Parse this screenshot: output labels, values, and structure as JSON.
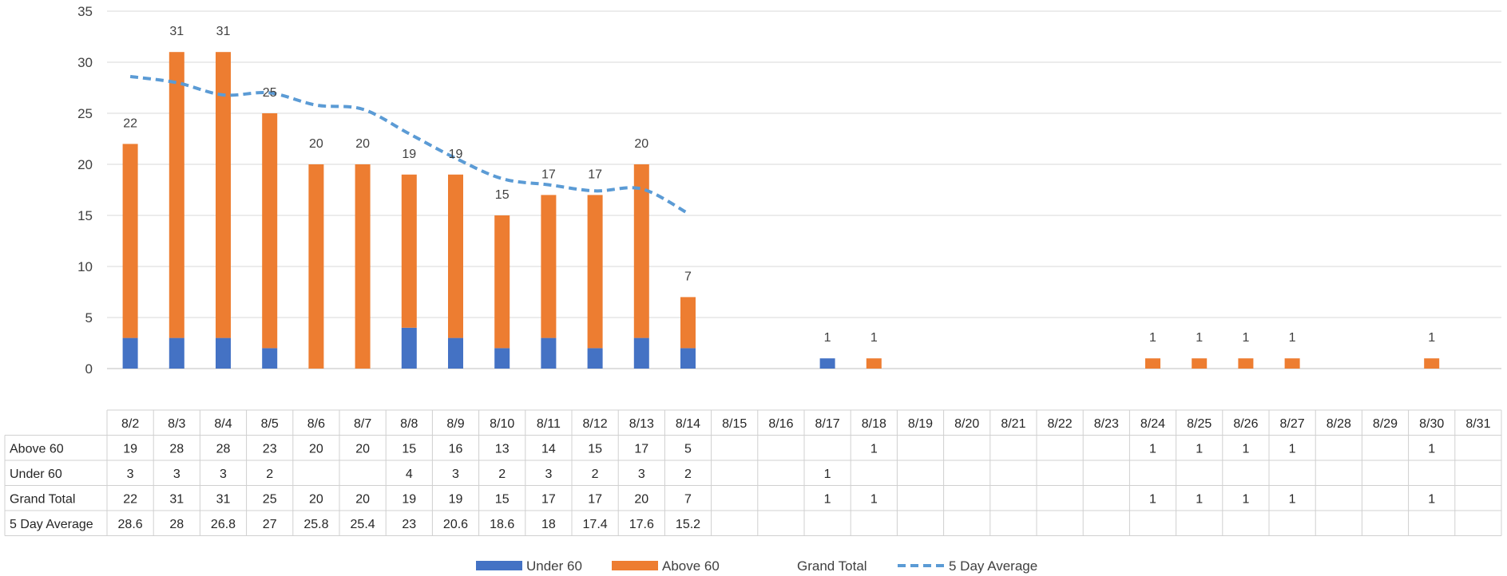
{
  "chart_data": {
    "type": "bar",
    "stacked": true,
    "title": "",
    "xlabel": "",
    "ylabel": "",
    "ylim": [
      0,
      35
    ],
    "yticks": [
      0,
      5,
      10,
      15,
      20,
      25,
      30,
      35
    ],
    "grid": true,
    "legend_position": "bottom",
    "categories": [
      "8/2",
      "8/3",
      "8/4",
      "8/5",
      "8/6",
      "8/7",
      "8/8",
      "8/9",
      "8/10",
      "8/11",
      "8/12",
      "8/13",
      "8/14",
      "8/15",
      "8/16",
      "8/17",
      "8/18",
      "8/19",
      "8/20",
      "8/21",
      "8/22",
      "8/23",
      "8/24",
      "8/25",
      "8/26",
      "8/27",
      "8/28",
      "8/29",
      "8/30",
      "8/31"
    ],
    "series": [
      {
        "name": "Under 60",
        "kind": "bar",
        "color": "#4472C4",
        "values": [
          3,
          3,
          3,
          2,
          null,
          null,
          4,
          3,
          2,
          3,
          2,
          3,
          2,
          null,
          null,
          1,
          null,
          null,
          null,
          null,
          null,
          null,
          null,
          null,
          null,
          null,
          null,
          null,
          null,
          null
        ]
      },
      {
        "name": "Above 60",
        "kind": "bar",
        "color": "#ED7D31",
        "values": [
          19,
          28,
          28,
          23,
          20,
          20,
          15,
          16,
          13,
          14,
          15,
          17,
          5,
          null,
          null,
          null,
          1,
          null,
          null,
          null,
          null,
          null,
          1,
          1,
          1,
          1,
          null,
          null,
          1,
          null
        ]
      },
      {
        "name": "Grand Total",
        "kind": "label-only",
        "values": [
          22,
          31,
          31,
          25,
          20,
          20,
          19,
          19,
          15,
          17,
          17,
          20,
          7,
          null,
          null,
          1,
          1,
          null,
          null,
          null,
          null,
          null,
          1,
          1,
          1,
          1,
          null,
          null,
          1,
          null
        ]
      },
      {
        "name": "5 Day Average",
        "kind": "line",
        "style": "dashed",
        "color": "#5B9BD5",
        "values": [
          28.6,
          28,
          26.8,
          27,
          25.8,
          25.4,
          23,
          20.6,
          18.6,
          18,
          17.4,
          17.6,
          15.2,
          null,
          null,
          null,
          null,
          null,
          null,
          null,
          null,
          null,
          null,
          null,
          null,
          null,
          null,
          null,
          null,
          null
        ]
      }
    ],
    "table_rows": [
      {
        "label": "Above 60",
        "series": 1
      },
      {
        "label": "Under 60",
        "series": 0
      },
      {
        "label": "Grand Total",
        "series": 2
      },
      {
        "label": "5 Day Average",
        "series": 3
      }
    ]
  }
}
